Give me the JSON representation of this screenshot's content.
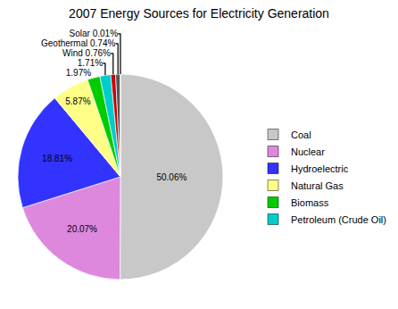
{
  "chart_data": {
    "type": "pie",
    "title": "2007 Energy Sources for Electricity Generation",
    "categories": [
      "Coal",
      "Nuclear",
      "Hydroelectric",
      "Natural Gas",
      "Biomass",
      "Petroleum (Crude Oil)",
      null,
      null,
      null
    ],
    "values": [
      50.06,
      20.07,
      18.81,
      5.87,
      1.97,
      1.71,
      0.76,
      0.74,
      0.01
    ],
    "value_labels": [
      "50.06%",
      "20.07%",
      "18.81%",
      "5.87%",
      "1.97%",
      "1.71%",
      "Wind 0.76%",
      "Geothermal 0.74%",
      "Solar 0.01%"
    ],
    "colors": [
      "#c8c8c8",
      "#dd88dd",
      "#3333ff",
      "#ffff88",
      "#00cc00",
      "#00cccc",
      "#cc0000",
      "#555555",
      "#000099"
    ],
    "data_labels": true,
    "legend": "right"
  }
}
